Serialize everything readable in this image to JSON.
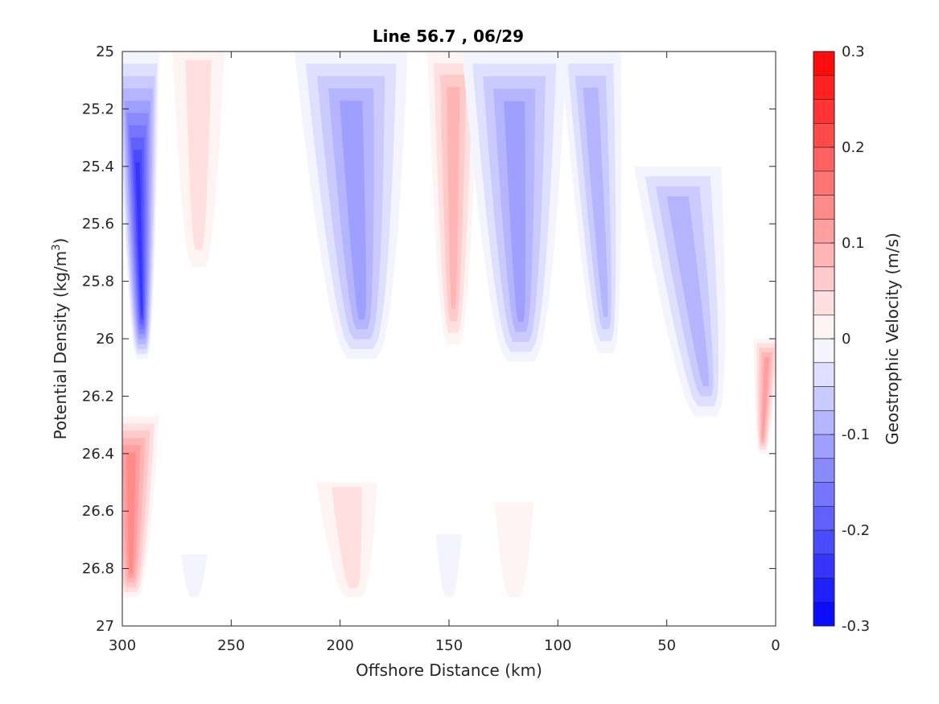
{
  "chart_data": {
    "type": "contour",
    "title": "Line 56.7 , 06/29",
    "xlabel": "Offshore Distance (km)",
    "ylabel_main": "Potential Density (kg/m",
    "ylabel_sup": "3",
    "ylabel_close": ")",
    "xlim": [
      300,
      0
    ],
    "ylim": [
      27,
      25
    ],
    "x_reversed": true,
    "y_reversed": true,
    "xticks": [
      300,
      250,
      200,
      150,
      100,
      50,
      0
    ],
    "xtick_labels": [
      "300",
      "250",
      "200",
      "150",
      "100",
      "50",
      "0"
    ],
    "yticks": [
      25,
      25.2,
      25.4,
      25.6,
      25.8,
      26,
      26.2,
      26.4,
      26.6,
      26.8,
      27
    ],
    "ytick_labels": [
      "25",
      "25.2",
      "25.4",
      "25.6",
      "25.8",
      "26",
      "26.2",
      "26.4",
      "26.6",
      "26.8",
      "27"
    ],
    "grid": false,
    "colorbar": {
      "label": "Geostrophic Velocity (m/s)",
      "range": [
        -0.3,
        0.3
      ],
      "levels": [
        -0.3,
        -0.275,
        -0.25,
        -0.225,
        -0.2,
        -0.175,
        -0.15,
        -0.125,
        -0.1,
        -0.075,
        -0.05,
        -0.025,
        0,
        0.025,
        0.05,
        0.075,
        0.1,
        0.125,
        0.15,
        0.175,
        0.2,
        0.225,
        0.25,
        0.275,
        0.3
      ],
      "ticks": [
        0.3,
        0.2,
        0.1,
        0,
        -0.1,
        -0.2,
        -0.3
      ],
      "tick_labels": [
        "0.3",
        "0.2",
        "0.1",
        "0",
        "-0.1",
        "-0.2",
        "-0.3"
      ],
      "neg_color": "#0000ff",
      "pos_color": "#ff0000"
    },
    "features": [
      {
        "name": "inshore-jet-300km",
        "x_center": 293,
        "x_halfwidth": 10,
        "y_top": 25.0,
        "y_bottom": 26.07,
        "peak_velocity": -0.25,
        "center_x_at_bottom": 291
      },
      {
        "name": "pos-265km",
        "x_center": 265,
        "x_halfwidth": 12,
        "y_top": 25.0,
        "y_bottom": 25.75,
        "peak_velocity": 0.05,
        "center_x_at_bottom": 265
      },
      {
        "name": "neg-195km",
        "x_center": 195,
        "x_halfwidth": 26,
        "y_top": 25.0,
        "y_bottom": 26.07,
        "peak_velocity": -0.13,
        "center_x_at_bottom": 190
      },
      {
        "name": "pos-150km",
        "x_center": 148,
        "x_halfwidth": 12,
        "y_top": 25.0,
        "y_bottom": 26.02,
        "peak_velocity": 0.1,
        "center_x_at_bottom": 148
      },
      {
        "name": "neg-120km",
        "x_center": 120,
        "x_halfwidth": 24,
        "y_top": 25.0,
        "y_bottom": 26.08,
        "peak_velocity": -0.13,
        "center_x_at_bottom": 117
      },
      {
        "name": "neg-slope-80km",
        "x_center": 85,
        "x_halfwidth": 14,
        "y_top": 25.0,
        "y_bottom": 26.05,
        "peak_velocity": -0.1,
        "center_x_at_bottom": 78
      },
      {
        "name": "neg-slope-45km",
        "x_center": 45,
        "x_halfwidth": 20,
        "y_top": 25.4,
        "y_bottom": 26.27,
        "peak_velocity": -0.1,
        "center_x_at_bottom": 32
      },
      {
        "name": "pos-nearshore-4km",
        "x_center": 4,
        "x_halfwidth": 6,
        "y_top": 26.0,
        "y_bottom": 26.4,
        "peak_velocity": 0.13,
        "center_x_at_bottom": 6
      },
      {
        "name": "pos-deep-295km",
        "x_center": 296,
        "x_halfwidth": 13,
        "y_top": 26.27,
        "y_bottom": 26.9,
        "peak_velocity": 0.15,
        "center_x_at_bottom": 296
      },
      {
        "name": "neg-deep-267km",
        "x_center": 267,
        "x_halfwidth": 6,
        "y_top": 26.75,
        "y_bottom": 26.9,
        "peak_velocity": -0.04,
        "center_x_at_bottom": 267
      },
      {
        "name": "pos-deep-197km",
        "x_center": 197,
        "x_halfwidth": 14,
        "y_top": 26.5,
        "y_bottom": 26.9,
        "peak_velocity": 0.06,
        "center_x_at_bottom": 194
      },
      {
        "name": "neg-deep-150km",
        "x_center": 150,
        "x_halfwidth": 6,
        "y_top": 26.68,
        "y_bottom": 26.9,
        "peak_velocity": -0.03,
        "center_x_at_bottom": 150
      },
      {
        "name": "pos-deep-120km",
        "x_center": 120,
        "x_halfwidth": 9,
        "y_top": 26.57,
        "y_bottom": 26.9,
        "peak_velocity": 0.04,
        "center_x_at_bottom": 120
      }
    ],
    "data_bottom_density": 26.9
  }
}
